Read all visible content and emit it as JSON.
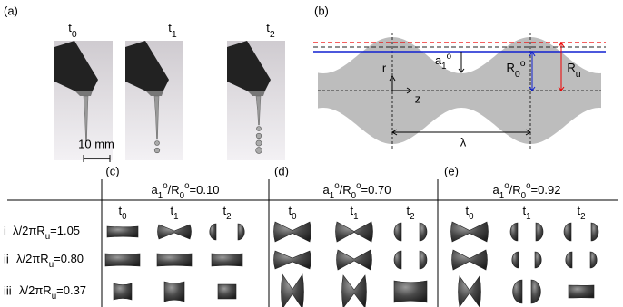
{
  "panel_a": {
    "label": "(a)",
    "times": [
      [
        {
          "text": "t"
        },
        {
          "sub": "0"
        }
      ],
      [
        {
          "text": "t"
        },
        {
          "sub": "1"
        }
      ],
      [
        {
          "text": "t"
        },
        {
          "sub": "2"
        }
      ]
    ],
    "scale": "10 mm"
  },
  "panel_b": {
    "label": "(b)",
    "r": "r",
    "z": "z",
    "a1": [
      {
        "text": "a"
      },
      {
        "sub": "1"
      },
      {
        "sup": "o"
      }
    ],
    "R0": [
      {
        "text": "R"
      },
      {
        "sub": "0"
      },
      {
        "sup": "o"
      }
    ],
    "Ru": [
      {
        "text": "R"
      },
      {
        "sub": "u"
      }
    ],
    "lambda": "λ"
  },
  "table": {
    "panels": [
      {
        "label": "(c)",
        "title": [
          {
            "text": "a"
          },
          {
            "sub": "1"
          },
          {
            "sup": "o"
          },
          {
            "text": "/R"
          },
          {
            "sub": "0"
          },
          {
            "sup": "o"
          },
          {
            "text": "=0.10"
          }
        ],
        "times": [
          [
            {
              "text": "t"
            },
            {
              "sub": "0"
            }
          ],
          [
            {
              "text": "t"
            },
            {
              "sub": "1"
            }
          ],
          [
            {
              "text": "t"
            },
            {
              "sub": "2"
            }
          ]
        ]
      },
      {
        "label": "(d)",
        "title": [
          {
            "text": "a"
          },
          {
            "sub": "1"
          },
          {
            "sup": "o"
          },
          {
            "text": "/R"
          },
          {
            "sub": "0"
          },
          {
            "sup": "o"
          },
          {
            "text": "=0.70"
          }
        ],
        "times": [
          [
            {
              "text": "t"
            },
            {
              "sub": "0"
            }
          ],
          [
            {
              "text": "t"
            },
            {
              "sub": "1"
            }
          ],
          [
            {
              "text": "t"
            },
            {
              "sub": "2"
            }
          ]
        ]
      },
      {
        "label": "(e)",
        "title": [
          {
            "text": "a"
          },
          {
            "sub": "1"
          },
          {
            "sup": "o"
          },
          {
            "text": "/R"
          },
          {
            "sub": "0"
          },
          {
            "sup": "o"
          },
          {
            "text": "=0.92"
          }
        ],
        "times": [
          [
            {
              "text": "t"
            },
            {
              "sub": "0"
            }
          ],
          [
            {
              "text": "t"
            },
            {
              "sub": "1"
            }
          ],
          [
            {
              "text": "t"
            },
            {
              "sub": "2"
            }
          ]
        ]
      }
    ],
    "rows": [
      {
        "index": "i",
        "label": [
          {
            "text": "λ/2πR"
          },
          {
            "sub": "u"
          },
          {
            "text": "=1.05"
          }
        ]
      },
      {
        "index": "ii",
        "label": [
          {
            "text": "λ/2πR"
          },
          {
            "sub": "u"
          },
          {
            "text": "=0.80"
          }
        ]
      },
      {
        "index": "iii",
        "label": [
          {
            "text": "λ/2πR"
          },
          {
            "sub": "u"
          },
          {
            "text": "=0.37"
          }
        ]
      }
    ]
  }
}
